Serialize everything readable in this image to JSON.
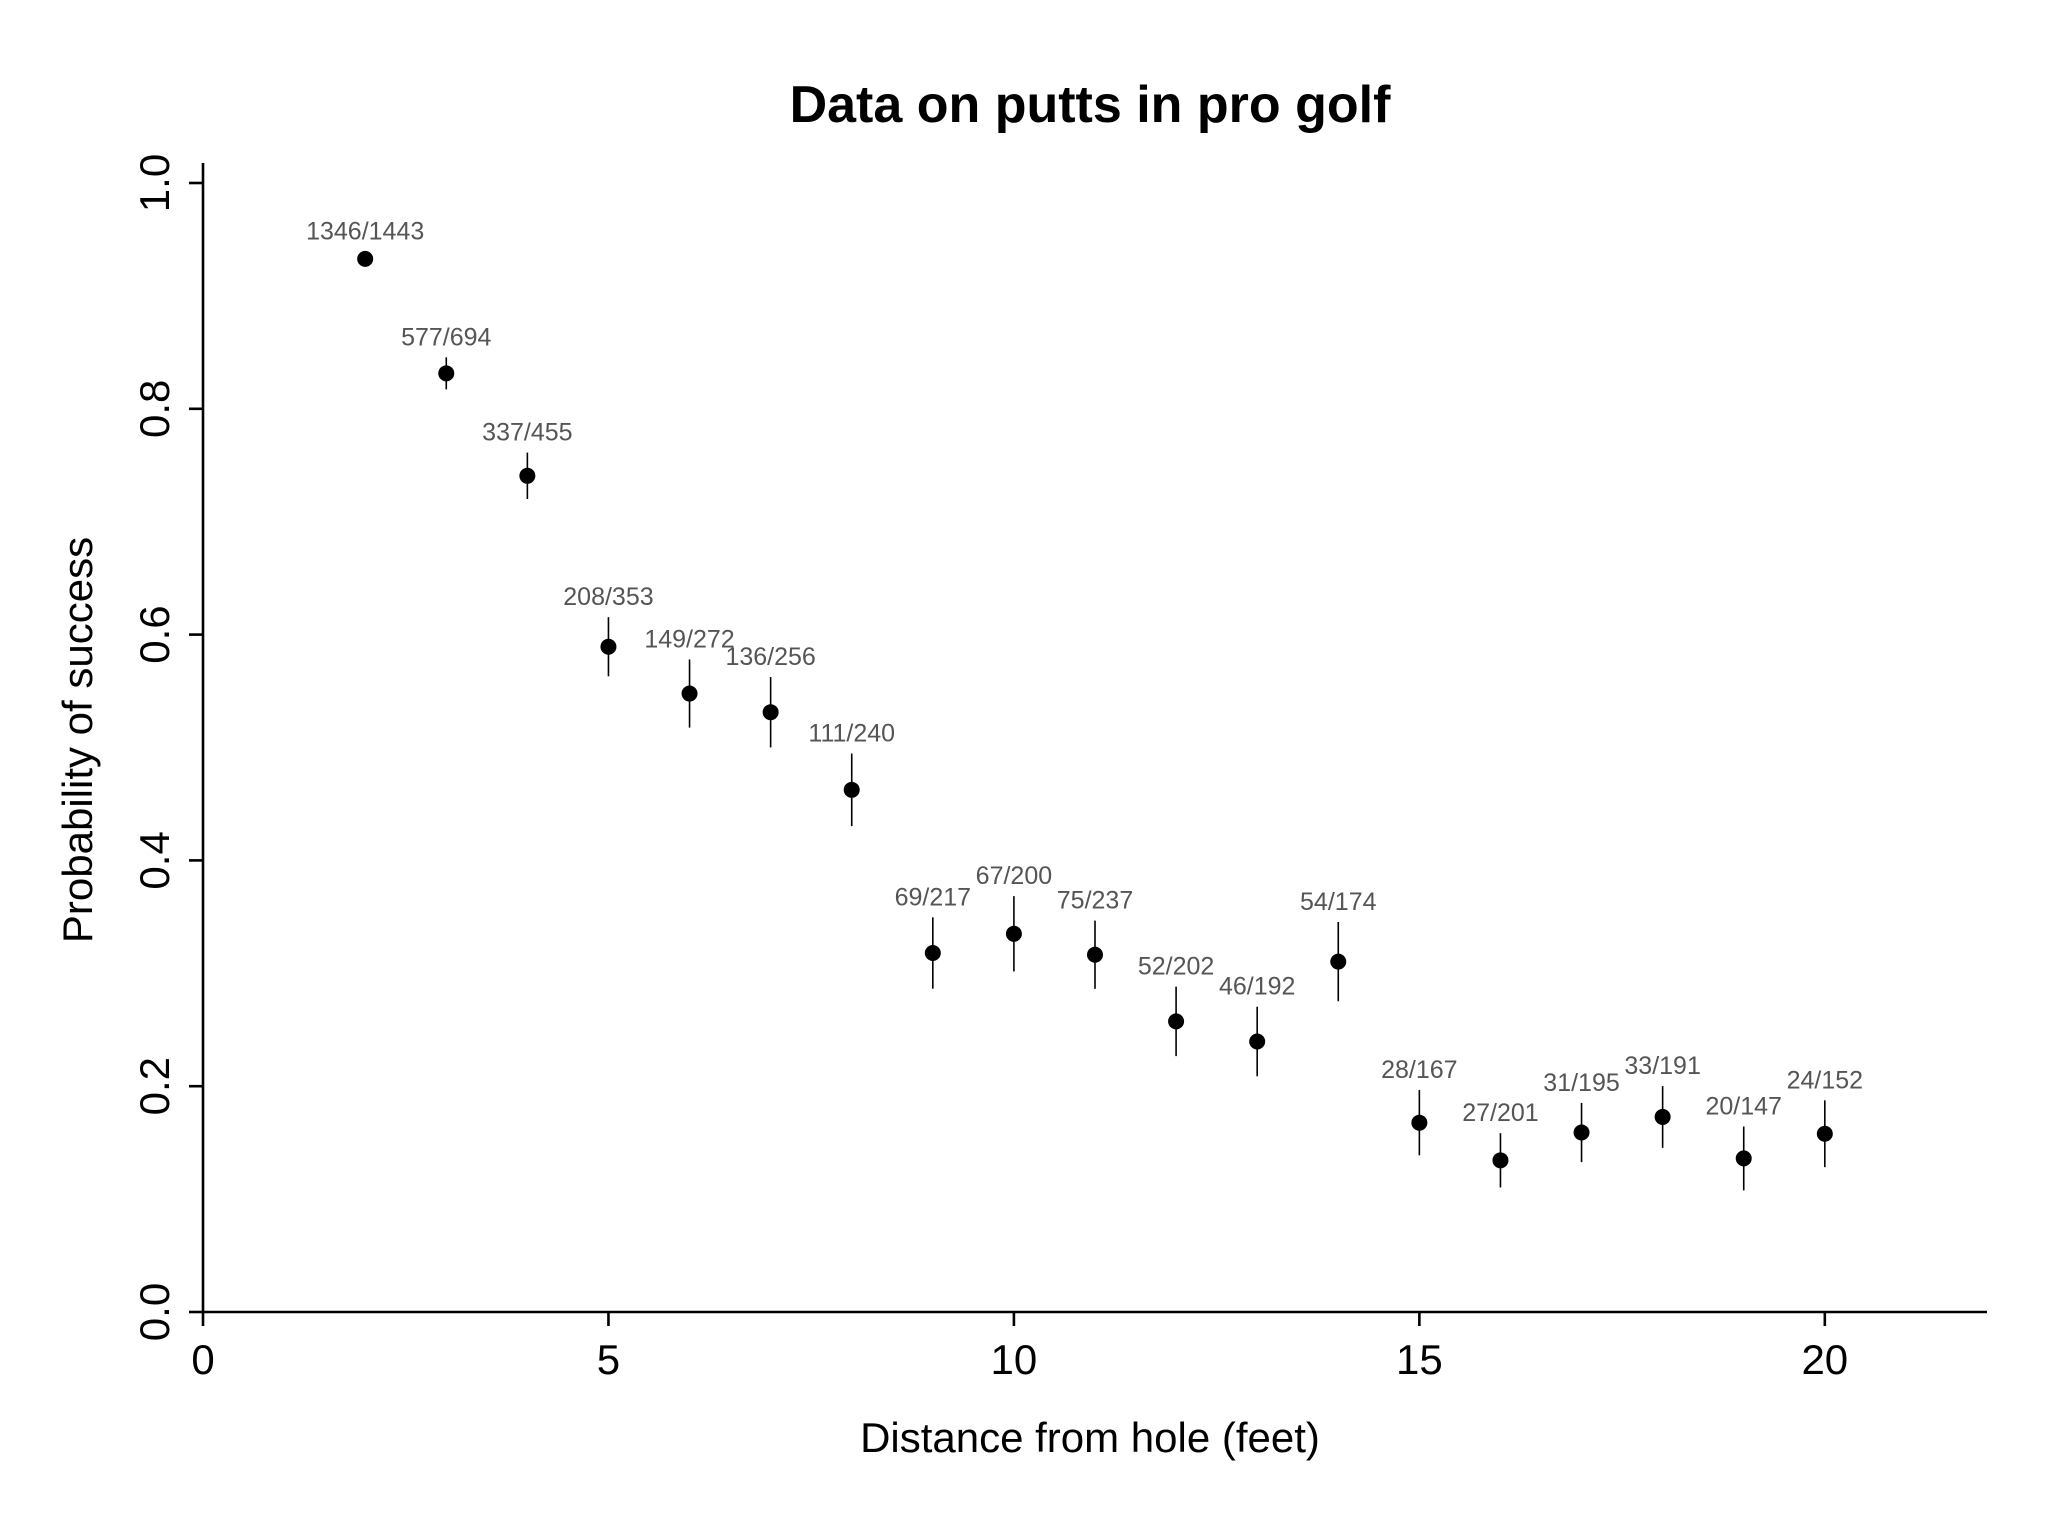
{
  "chart_data": {
    "type": "scatter",
    "title": "Data on putts in pro golf",
    "xlabel": "Distance from hole (feet)",
    "ylabel": "Probability of success",
    "xlim": [
      0,
      22
    ],
    "ylim": [
      0,
      1.0
    ],
    "xticks": [
      0,
      5,
      10,
      15,
      20
    ],
    "yticks": [
      "0.0",
      "0.2",
      "0.4",
      "0.6",
      "0.8",
      "1.0"
    ],
    "grid": false,
    "points": [
      {
        "x": 2,
        "success": 1346,
        "tries": 1443,
        "label": "1346/1443"
      },
      {
        "x": 3,
        "success": 577,
        "tries": 694,
        "label": "577/694"
      },
      {
        "x": 4,
        "success": 337,
        "tries": 455,
        "label": "337/455"
      },
      {
        "x": 5,
        "success": 208,
        "tries": 353,
        "label": "208/353"
      },
      {
        "x": 6,
        "success": 149,
        "tries": 272,
        "label": "149/272"
      },
      {
        "x": 7,
        "success": 136,
        "tries": 256,
        "label": "136/256"
      },
      {
        "x": 8,
        "success": 111,
        "tries": 240,
        "label": "111/240"
      },
      {
        "x": 9,
        "success": 69,
        "tries": 217,
        "label": "69/217"
      },
      {
        "x": 10,
        "success": 67,
        "tries": 200,
        "label": "67/200"
      },
      {
        "x": 11,
        "success": 75,
        "tries": 237,
        "label": "75/237"
      },
      {
        "x": 12,
        "success": 52,
        "tries": 202,
        "label": "52/202"
      },
      {
        "x": 13,
        "success": 46,
        "tries": 192,
        "label": "46/192"
      },
      {
        "x": 14,
        "success": 54,
        "tries": 174,
        "label": "54/174"
      },
      {
        "x": 15,
        "success": 28,
        "tries": 167,
        "label": "28/167"
      },
      {
        "x": 16,
        "success": 27,
        "tries": 201,
        "label": "27/201"
      },
      {
        "x": 17,
        "success": 31,
        "tries": 195,
        "label": "31/195"
      },
      {
        "x": 18,
        "success": 33,
        "tries": 191,
        "label": "33/191"
      },
      {
        "x": 19,
        "success": 20,
        "tries": 147,
        "label": "20/147"
      },
      {
        "x": 20,
        "success": 24,
        "tries": 152,
        "label": "24/152"
      }
    ]
  }
}
